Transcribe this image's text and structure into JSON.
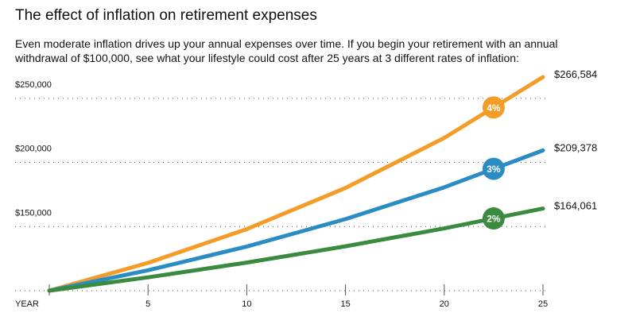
{
  "title": "The effect of inflation on retirement expenses",
  "subtitle": "Even moderate inflation drives up your annual expenses over time. If you begin your retirement with an annual withdrawal of $100,000, see what your lifestyle could cost after 25 years at 3 different rates of inflation:",
  "chart_data": {
    "type": "line",
    "title": "The effect of inflation on retirement expenses",
    "xlabel": "YEAR",
    "ylabel": "",
    "x": [
      0,
      5,
      10,
      15,
      20,
      25
    ],
    "xticks": [
      5,
      10,
      15,
      20,
      25
    ],
    "xlim": [
      0,
      25
    ],
    "ylim": [
      100000,
      266584
    ],
    "yticks": [
      150000,
      200000,
      250000
    ],
    "ytick_labels": [
      "$150,000",
      "$200,000",
      "$250,000"
    ],
    "grid": "horizontal dotted",
    "series": [
      {
        "name": "4%",
        "color": "#f39c27",
        "values": [
          100000,
          121665,
          148024,
          180094,
          219112,
          266584
        ],
        "end_label": "$266,584",
        "badge_x": 22.5
      },
      {
        "name": "3%",
        "color": "#2b8cc4",
        "values": [
          100000,
          115927,
          134392,
          155797,
          180611,
          209378
        ],
        "end_label": "$209,378",
        "badge_x": 22.5
      },
      {
        "name": "2%",
        "color": "#3a8a3f",
        "values": [
          100000,
          110408,
          121899,
          134587,
          148595,
          164061
        ],
        "end_label": "$164,061",
        "badge_x": 22.5
      }
    ]
  }
}
